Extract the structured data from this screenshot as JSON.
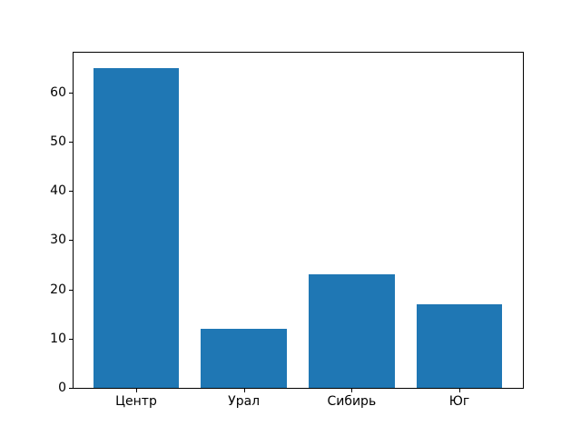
{
  "chart_data": {
    "type": "bar",
    "categories": [
      "Центр",
      "Урал",
      "Сибирь",
      "Юг"
    ],
    "values": [
      65,
      12,
      23,
      17
    ],
    "title": "",
    "xlabel": "",
    "ylabel": "",
    "yticks": [
      0,
      10,
      20,
      30,
      40,
      50,
      60
    ],
    "ylim": [
      0,
      68.25
    ],
    "bar_color": "#1f77b4",
    "bar_width": 0.8,
    "frame_color": "#000000",
    "background_color": "#ffffff",
    "grid": false,
    "legend": false
  }
}
